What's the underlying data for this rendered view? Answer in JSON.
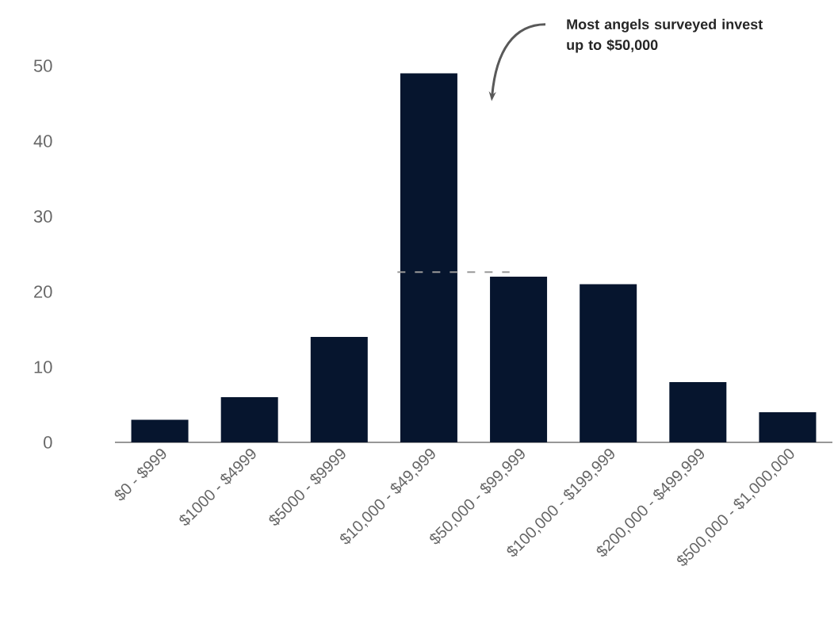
{
  "chart_data": {
    "type": "bar",
    "categories": [
      "$0 - $999",
      "$1000 - $4999",
      "$5000 - $9999",
      "$10,000 - $49,999",
      "$50,000 - $99,999",
      "$100,000 - $199,999",
      "$200,000 - $499,999",
      "$500,000 - $1,000,000"
    ],
    "values": [
      3,
      6,
      14,
      49,
      22,
      21,
      8,
      4
    ],
    "color": "#06152e",
    "ylim": [
      0,
      50
    ],
    "yticks": [
      0,
      10,
      20,
      30,
      40,
      50
    ],
    "grid": false,
    "ref_lines": [
      {
        "axis": "y",
        "value": 22.6,
        "color": "#999999",
        "line_style": "dashed"
      }
    ],
    "annotations": [
      "Most angels surveyed invest up to $50,000"
    ]
  }
}
